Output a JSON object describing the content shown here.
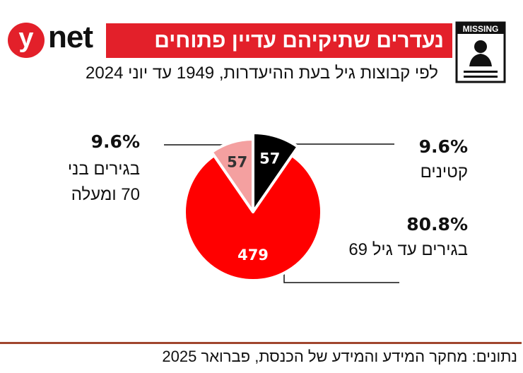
{
  "header": {
    "logo_letter": "y",
    "logo_word": "net",
    "title": "נעדרים שתיקיהם עדיין פתוחים",
    "subtitle": "לפי קבוצות גיל בעת ההיעדרות, 1949 עד יוני 2024",
    "badge": "MISSING",
    "brand_color": "#e3202a"
  },
  "chart_data": {
    "type": "pie",
    "categories": [
      "קטינים",
      "בגירים עד גיל 69",
      "בגירים בני 70 ומעלה"
    ],
    "values": [
      57,
      479,
      57
    ],
    "value_labels": [
      "57",
      "479",
      "57"
    ],
    "percent_labels": [
      "9.6%",
      "80.8%",
      "9.6%"
    ],
    "colors": [
      "#000000",
      "#ff0000",
      "#f4a0a0"
    ],
    "label_colors": [
      "#ffffff",
      "#ffffff",
      "#333333"
    ]
  },
  "labels": {
    "minors": {
      "pct": "9.6%",
      "name": "קטינים"
    },
    "adults": {
      "pct": "80.8%",
      "name": "בגירים עד גיל 69"
    },
    "seniors": {
      "pct": "9.6%",
      "line1": "בגירים בני",
      "line2": "70 ומעלה"
    }
  },
  "footer": {
    "source": "נתונים: מחקר המידע והמידע של הכנסת, פברואר 2025"
  }
}
